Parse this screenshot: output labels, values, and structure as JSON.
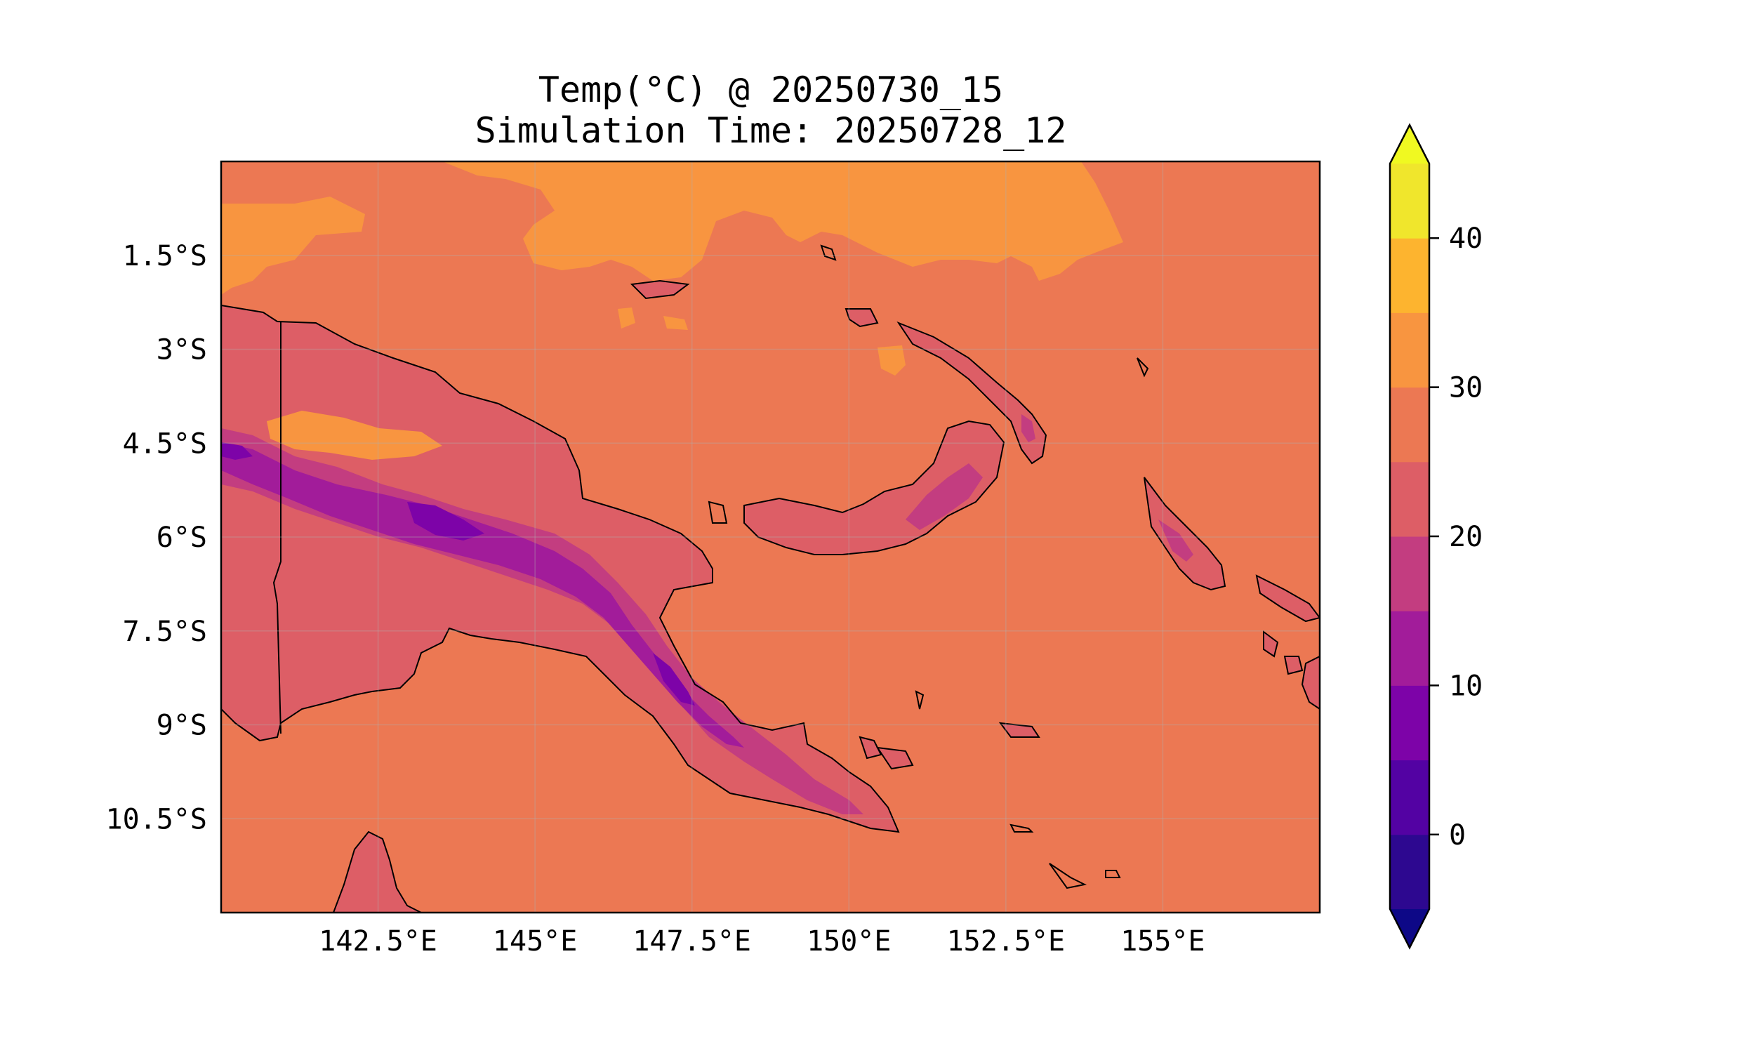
{
  "title": {
    "line1": "Temp(°C) @ 20250730_15",
    "line2": "Simulation Time: 20250728_12"
  },
  "chart_data": {
    "type": "heatmap",
    "variable": "Temp(°C)",
    "projection": "PlateCarree",
    "lon_range": [
      140.0,
      157.5
    ],
    "lat_range": [
      -12.0,
      -0.0
    ],
    "x_ticks": [
      {
        "value": 142.5,
        "label": "142.5°E"
      },
      {
        "value": 145.0,
        "label": "145°E"
      },
      {
        "value": 147.5,
        "label": "147.5°E"
      },
      {
        "value": 150.0,
        "label": "150°E"
      },
      {
        "value": 152.5,
        "label": "152.5°E"
      },
      {
        "value": 155.0,
        "label": "155°E"
      }
    ],
    "y_ticks": [
      {
        "value": -1.5,
        "label": "1.5°S"
      },
      {
        "value": -3.0,
        "label": "3°S"
      },
      {
        "value": -4.5,
        "label": "4.5°S"
      },
      {
        "value": -6.0,
        "label": "6°S"
      },
      {
        "value": -7.5,
        "label": "7.5°S"
      },
      {
        "value": -9.0,
        "label": "9°S"
      },
      {
        "value": -10.5,
        "label": "10.5°S"
      }
    ],
    "grid": true,
    "colorbar": {
      "cmap": "plasma",
      "extend": "both",
      "levels": [
        -5,
        0,
        5,
        10,
        15,
        20,
        25,
        30,
        35,
        40,
        45
      ],
      "colors": [
        "#2d0890",
        "#5302a3",
        "#7d03a8",
        "#a21c9a",
        "#c33d80",
        "#dd5e66",
        "#ec7853",
        "#f89540",
        "#fdb42f",
        "#f0e62c"
      ],
      "under_color": "#0d0887",
      "over_color": "#f0f921",
      "tick_labels": [
        {
          "value": 0,
          "label": "0"
        },
        {
          "value": 10,
          "label": "10"
        },
        {
          "value": 20,
          "label": "20"
        },
        {
          "value": 30,
          "label": "30"
        },
        {
          "value": 40,
          "label": "40"
        }
      ]
    },
    "field_colors": {
      "ocean": "#ec7853",
      "warm": "#f89540",
      "land": "#dd5e66",
      "highland": "#c33d80",
      "mountain": "#a21c9a",
      "peak": "#7d03a8"
    }
  }
}
